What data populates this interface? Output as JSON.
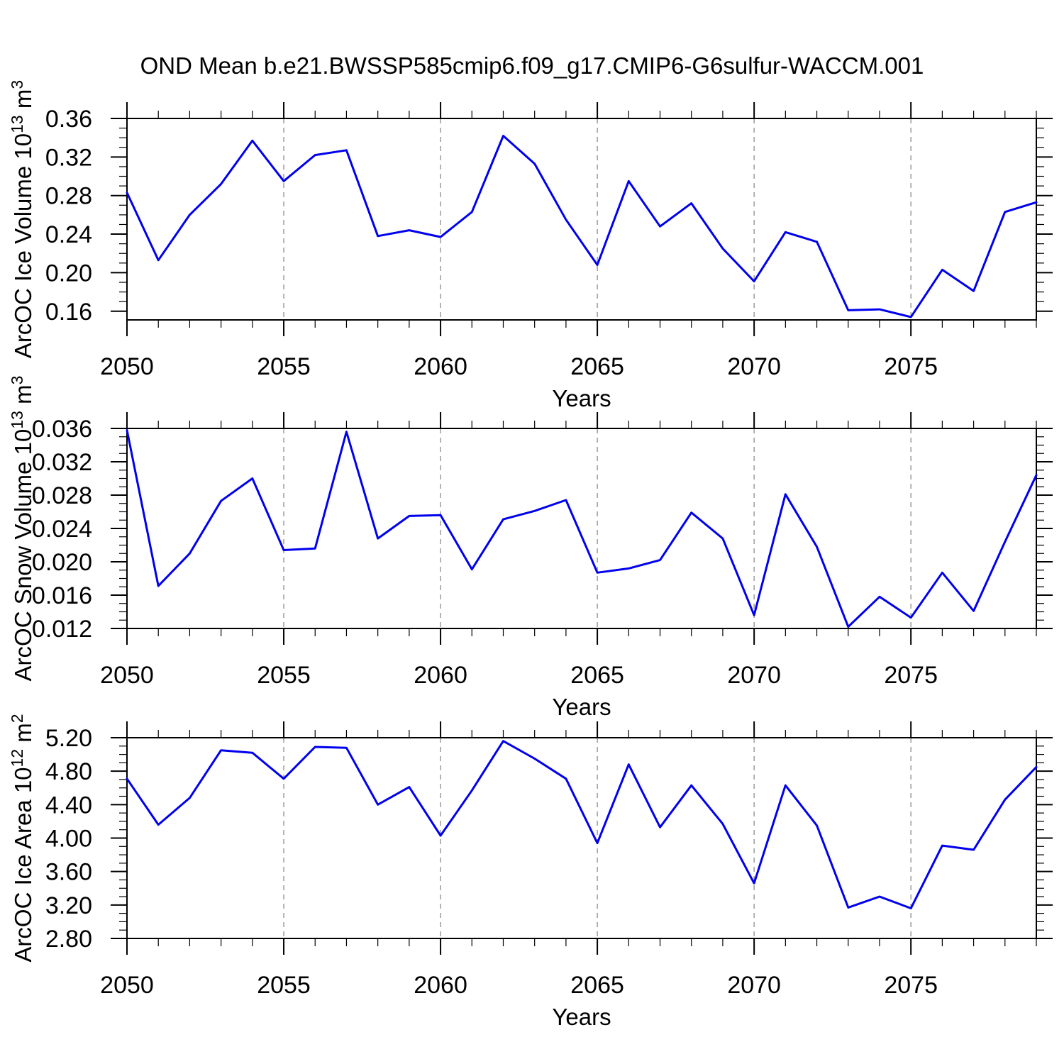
{
  "title": "OND Mean b.e21.BWSSP585cmip6.f09_g17.CMIP6-G6sulfur-WACCM.001",
  "colors": {
    "line": "#0000ee",
    "axis": "#000000",
    "gridline": "#8c8c8c",
    "text": "#000000",
    "background": "#ffffff"
  },
  "x_axis": {
    "label": "Years",
    "start": 2050,
    "end": 2079,
    "major_tick_years": [
      2050,
      2055,
      2060,
      2065,
      2070,
      2075
    ],
    "major_tick_labels": [
      "2050",
      "2055",
      "2060",
      "2065",
      "2070",
      "2075"
    ],
    "minor_tick_step": 1,
    "gridline_years": [
      2055,
      2060,
      2065,
      2070,
      2075
    ],
    "gridline_style": "dashed"
  },
  "years": [
    2050,
    2051,
    2052,
    2053,
    2054,
    2055,
    2056,
    2057,
    2058,
    2059,
    2060,
    2061,
    2062,
    2063,
    2064,
    2065,
    2066,
    2067,
    2068,
    2069,
    2070,
    2071,
    2072,
    2073,
    2074,
    2075,
    2076,
    2077,
    2078,
    2079
  ],
  "chart_data": [
    {
      "type": "line",
      "series_name": "ArcOC Ice Volume",
      "ylabel": "ArcOC Ice Volume 10^13 m^3",
      "ylim": [
        0.151,
        0.36
      ],
      "ytick_values": [
        0.36,
        0.32,
        0.28,
        0.24,
        0.2,
        0.16
      ],
      "ytick_labels": [
        "0.36",
        "0.32",
        "0.28",
        "0.24",
        "0.20",
        "0.16"
      ],
      "yminor_step": 0.01,
      "values": [
        0.283,
        0.213,
        0.26,
        0.292,
        0.337,
        0.295,
        0.322,
        0.327,
        0.238,
        0.244,
        0.237,
        0.263,
        0.342,
        0.313,
        0.255,
        0.208,
        0.295,
        0.248,
        0.272,
        0.225,
        0.191,
        0.242,
        0.232,
        0.161,
        0.162,
        0.154,
        0.203,
        0.181,
        0.263,
        0.273
      ]
    },
    {
      "type": "line",
      "series_name": "ArcOC Snow Volume",
      "ylabel": "ArcOC Snow Volume 10^13 m^3",
      "ylim": [
        0.012,
        0.036
      ],
      "ytick_values": [
        0.036,
        0.032,
        0.028,
        0.024,
        0.02,
        0.016,
        0.012
      ],
      "ytick_labels": [
        "0.036",
        "0.032",
        "0.028",
        "0.024",
        "0.020",
        "0.016",
        "0.012"
      ],
      "yminor_step": 0.001,
      "values": [
        0.0358,
        0.0171,
        0.021,
        0.0273,
        0.03,
        0.0214,
        0.0216,
        0.0356,
        0.0228,
        0.0255,
        0.0256,
        0.0191,
        0.0251,
        0.0261,
        0.0274,
        0.0187,
        0.0192,
        0.0202,
        0.0259,
        0.0228,
        0.0136,
        0.0281,
        0.0218,
        0.0122,
        0.0158,
        0.0133,
        0.0187,
        0.0141,
        0.0224,
        0.0304
      ]
    },
    {
      "type": "line",
      "series_name": "ArcOC Ice Area",
      "ylabel": "ArcOC Ice Area 10^12 m^2",
      "ylim": [
        2.8,
        5.2
      ],
      "ytick_values": [
        5.2,
        4.8,
        4.4,
        4.0,
        3.6,
        3.2,
        2.8
      ],
      "ytick_labels": [
        "5.20",
        "4.80",
        "4.40",
        "4.00",
        "3.60",
        "3.20",
        "2.80"
      ],
      "yminor_step": 0.1,
      "values": [
        4.71,
        4.16,
        4.48,
        5.05,
        5.02,
        4.71,
        5.09,
        5.08,
        4.4,
        4.61,
        4.03,
        4.57,
        5.16,
        4.95,
        4.71,
        3.94,
        4.88,
        4.13,
        4.63,
        4.17,
        3.46,
        4.63,
        4.15,
        3.17,
        3.3,
        3.16,
        3.91,
        3.86,
        4.46,
        4.85
      ]
    }
  ]
}
